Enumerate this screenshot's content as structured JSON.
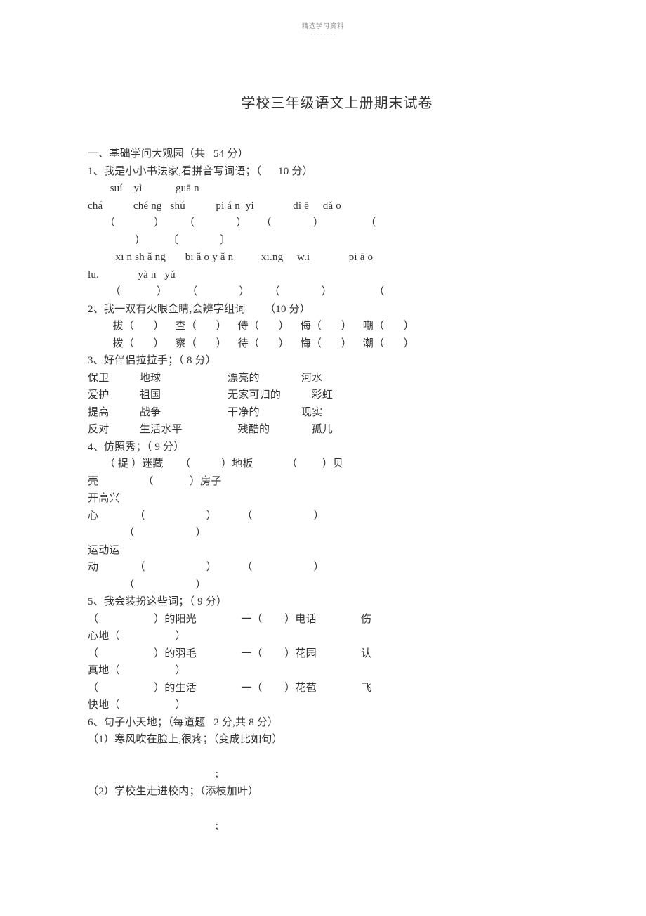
{
  "header": {
    "small": "精选学习资料",
    "dashes": "- - -   - -\n- - -"
  },
  "title": "学校三年级语文上册期末试卷",
  "s1": {
    "h": "一、基础学问大观园（共   54 分）",
    "q1": "1、我是小小书法家,看拼音写词语；（      10 分）",
    "p1a": "        suí    yì            guā n",
    "p1b": "chá           ché ng   shú           pi á n  yi              di ē     dǎ o",
    "b1": "      （              ）       （               ）     （               ）               （",
    "b2": "                 ）        〔               〕",
    "p2a": "          xī n sh ǎ ng       bi ǎ o y ǎ n          xi.ng     w.i              pi ā o",
    "p2b": "lu.              yà n   yǔ",
    "b3": "        （             ）       （               ）       （               ）               （",
    "q2": "2、我一双有火眼金睛,会辨字组词       （10 分）",
    "r2a": "         拔（       ）    查（       ）    侍（       ）    侮（       ）    嘲（       ）",
    "r2b": "         拨（       ）    察（       ）    待（       ）    悔（       ）    潮（       ）",
    "q3": "3、好伴侣拉拉手；（ 8 分）",
    "r3a": "保卫           地球                        漂亮的               河水",
    "r3b": "爱护           祖国                        无家可归的           彩虹",
    "r3c": "提高           战争                        干净的               现实",
    "r3d": "反对           生活水平                    残酷的               孤儿",
    "q4": "4、仿照秀；（ 9 分）",
    "r4a": "      （ 捉 ）迷藏      （           ）地板            （         ）贝",
    "r4b": "壳                （             ）房子",
    "r4c": "开高兴",
    "r4d": "心             （                      ）         （                      ）",
    "r4e": "             （                      ）",
    "r4f": "运动运",
    "r4g": "动             （                      ）         （                      ）",
    "r4h": "             （                      ）",
    "q5": "5、我会装扮这些词；（ 9 分）",
    "r5a": "（                    ）的阳光                一（        ）电话                伤",
    "r5b": "心地（                    ）",
    "r5c": "（                    ）的羽毛                一（        ）花园                认",
    "r5d": "真地（                    ）",
    "r5e": "（                    ）的生活                一（        ）花苞                飞",
    "r5f": "快地（                    ）",
    "q6": "6、句子小天地；（每道题   2 分,共 8 分）",
    "r6a": "（1）寒风吹在脸上,很疼；（变成比如句）",
    "r6b": "                                              ;",
    "r6c": "（2）学校生走进校内；（添枝加叶）",
    "r6d": "                                              ;"
  }
}
